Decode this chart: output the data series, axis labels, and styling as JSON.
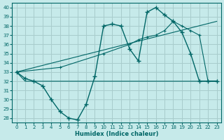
{
  "xlabel": "Humidex (Indice chaleur)",
  "background_color": "#c6eaea",
  "grid_color": "#a8cccc",
  "line_color": "#006666",
  "xlim": [
    -0.5,
    23.5
  ],
  "ylim": [
    27.5,
    40.5
  ],
  "yticks": [
    28,
    29,
    30,
    31,
    32,
    33,
    34,
    35,
    36,
    37,
    38,
    39,
    40
  ],
  "xticks": [
    0,
    1,
    2,
    3,
    4,
    5,
    6,
    7,
    8,
    9,
    10,
    11,
    12,
    13,
    14,
    15,
    16,
    17,
    18,
    19,
    20,
    21,
    22,
    23
  ],
  "curve1_x": [
    0,
    1,
    2,
    3,
    4,
    5,
    6,
    7,
    8,
    9,
    10,
    11,
    12,
    13,
    14,
    15,
    16,
    17,
    18,
    19,
    20,
    21,
    22,
    23
  ],
  "curve1_y": [
    33.0,
    32.3,
    32.0,
    31.5,
    30.0,
    28.7,
    28.0,
    27.8,
    29.5,
    32.5,
    38.0,
    38.2,
    38.0,
    35.5,
    34.2,
    39.5,
    40.0,
    39.2,
    38.5,
    37.3,
    35.0,
    32.0,
    32.0,
    32.0
  ],
  "curve2_x": [
    0,
    1,
    23
  ],
  "curve2_y": [
    33.0,
    32.0,
    32.0
  ],
  "curve3_x": [
    0,
    23
  ],
  "curve3_y": [
    33.0,
    38.5
  ],
  "curve4_x": [
    0,
    5,
    10,
    13,
    14,
    15,
    16,
    17,
    18,
    19,
    20,
    21,
    22,
    23
  ],
  "curve4_y": [
    33.0,
    33.5,
    35.0,
    36.0,
    36.5,
    36.8,
    37.0,
    37.5,
    38.5,
    38.0,
    37.5,
    37.0,
    32.0,
    32.0
  ]
}
